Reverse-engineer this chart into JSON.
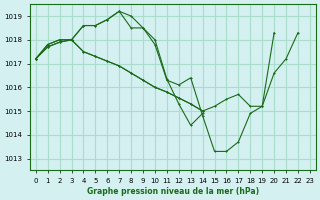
{
  "title": "Graphe pression niveau de la mer (hPa)",
  "bg_color": "#d4f0f0",
  "grid_color": "#aaddcc",
  "line_color": "#1a6b1a",
  "xlim": [
    -0.5,
    23.5
  ],
  "ylim": [
    1012.5,
    1019.5
  ],
  "yticks": [
    1013,
    1014,
    1015,
    1016,
    1017,
    1018,
    1019
  ],
  "xticks": [
    0,
    1,
    2,
    3,
    4,
    5,
    6,
    7,
    8,
    9,
    10,
    11,
    12,
    13,
    14,
    15,
    16,
    17,
    18,
    19,
    20,
    21,
    22,
    23
  ],
  "series_x": [
    [
      0,
      1,
      2,
      3,
      4,
      5,
      6,
      7,
      8,
      9,
      10,
      11,
      12,
      13,
      14,
      15,
      16,
      17,
      18,
      19,
      20,
      21,
      22
    ],
    [
      0,
      1,
      2,
      3,
      4,
      5,
      6,
      7,
      8,
      9,
      10,
      11,
      12,
      13,
      14
    ],
    [
      0,
      1,
      2,
      3,
      4,
      5,
      6,
      7,
      8,
      9,
      10,
      11,
      12,
      13,
      14
    ],
    [
      0,
      1,
      2,
      3,
      4,
      5,
      6,
      7,
      8,
      9,
      10,
      11,
      12,
      13,
      14,
      15,
      16,
      17,
      18,
      19,
      20
    ]
  ],
  "series_y": [
    [
      1017.2,
      1017.8,
      1018.0,
      1018.0,
      1018.6,
      1018.6,
      1018.85,
      1019.2,
      1019.0,
      1018.5,
      1017.8,
      1016.3,
      1016.1,
      1016.4,
      1014.8,
      1013.3,
      1013.3,
      1013.7,
      1014.9,
      1015.2,
      1016.6,
      1017.2,
      1018.3
    ],
    [
      1017.2,
      1017.8,
      1018.0,
      1018.0,
      1018.6,
      1018.6,
      1018.85,
      1019.2,
      1018.5,
      1018.5,
      1018.0,
      1016.35,
      1015.3,
      1014.4,
      1014.9
    ],
    [
      1017.2,
      1017.7,
      1017.9,
      1018.0,
      1017.5,
      1017.3,
      1017.1,
      1016.9,
      1016.6,
      1016.3,
      1016.0,
      1015.8,
      1015.55,
      1015.3,
      1015.0
    ],
    [
      1017.2,
      1017.7,
      1017.9,
      1018.0,
      1017.5,
      1017.3,
      1017.1,
      1016.9,
      1016.6,
      1016.3,
      1016.0,
      1015.8,
      1015.55,
      1015.3,
      1015.0,
      1015.2,
      1015.5,
      1015.7,
      1015.2,
      1015.2,
      1018.3
    ]
  ]
}
